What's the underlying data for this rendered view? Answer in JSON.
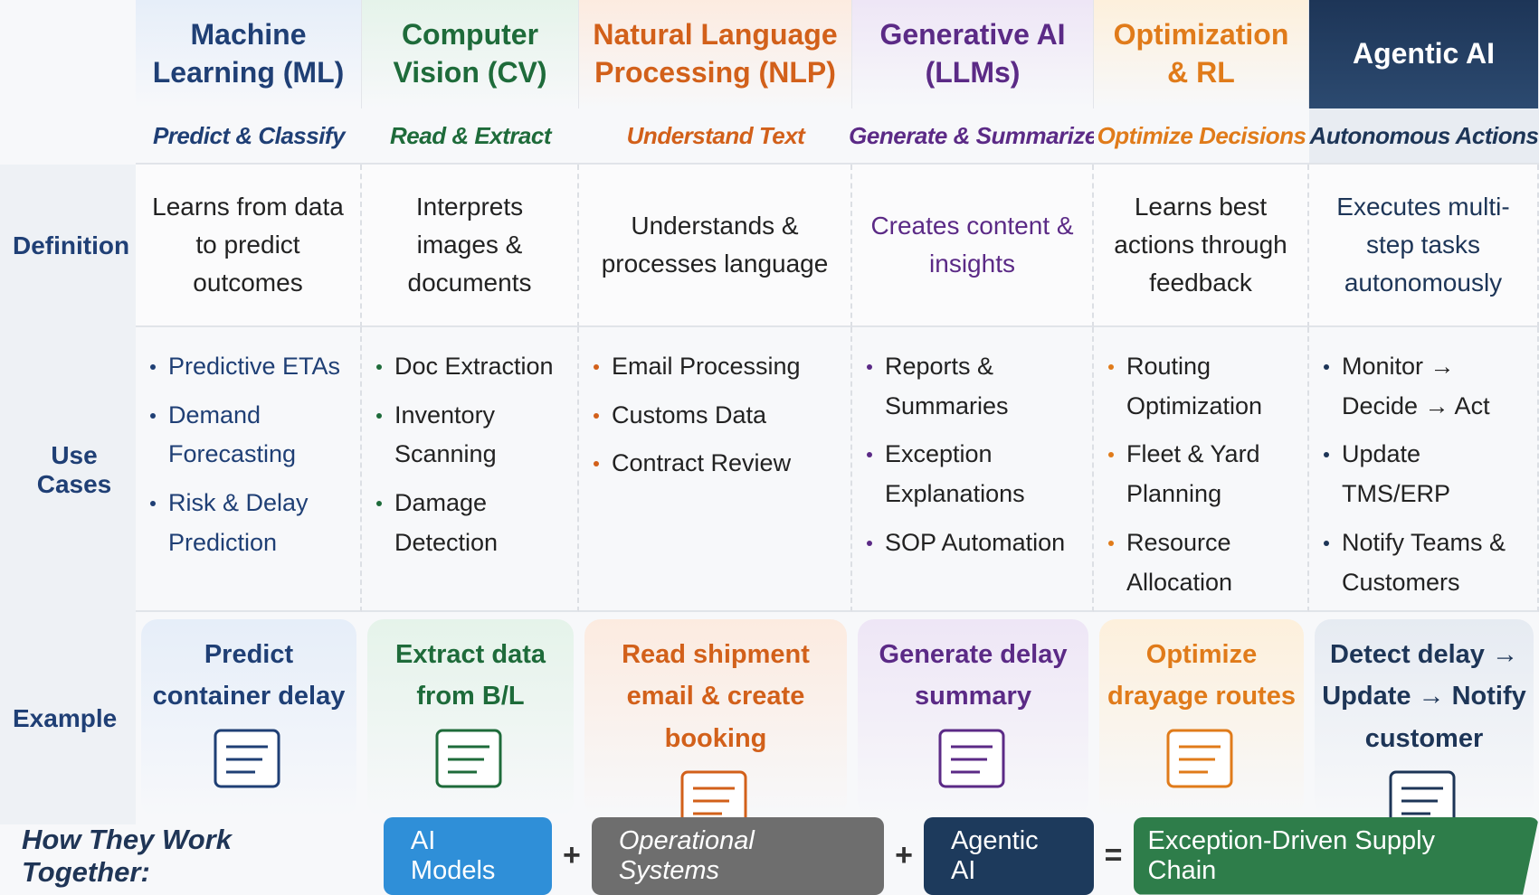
{
  "row_labels": [
    "Definition",
    "Use Cases",
    "Example"
  ],
  "columns": [
    {
      "title": "Machine Learning (ML)",
      "subtitle": "Predict & Classify",
      "color": "#1f3f75",
      "tint": "#e6eef9",
      "definition": "Learns from data to predict outcomes",
      "use_cases": [
        "Predictive ETAs",
        "Demand Forecasting",
        "Risk & Delay Prediction"
      ],
      "example": "Predict container delay"
    },
    {
      "title": "Computer Vision (CV)",
      "subtitle": "Read & Extract",
      "color": "#1e6b3a",
      "tint": "#e5f3ea",
      "definition": "Interprets images & documents",
      "use_cases": [
        "Doc Extraction",
        "Inventory Scanning",
        "Damage Detection"
      ],
      "example": "Extract data from B/L"
    },
    {
      "title": "Natural Language Processing (NLP)",
      "subtitle": "Understand Text",
      "color": "#d2601a",
      "tint": "#fcebe0",
      "definition": "Understands & processes language",
      "use_cases": [
        "Email Processing",
        "Customs Data",
        "Contract Review"
      ],
      "example": "Read shipment email & create booking"
    },
    {
      "title": "Generative AI (LLMs)",
      "subtitle": "Generate & Summarize",
      "color": "#5b2a86",
      "tint": "#eee6f6",
      "definition": "Creates content & insights",
      "use_cases": [
        "Reports & Summaries",
        "Exception Explanations",
        "SOP Automation"
      ],
      "example": "Generate delay summary"
    },
    {
      "title": "Optimization & RL",
      "subtitle": "Optimize Decisions",
      "color": "#e07b1a",
      "tint": "#fdf0dc",
      "definition": "Learns best actions through feedback",
      "use_cases": [
        "Routing Optimization",
        "Fleet & Yard Planning",
        "Resource Allocation"
      ],
      "example": "Optimize drayage routes"
    },
    {
      "title": "Agentic AI",
      "subtitle": "Autonomous Actions",
      "color": "#1d3557",
      "tint": "#e6ebf2",
      "definition": "Executes multi-step tasks autonomously",
      "use_cases": [
        "Monitor → Decide → Act",
        "Update TMS/ERP",
        "Notify Teams & Customers"
      ],
      "example": "Detect delay → Update → Notify customer"
    }
  ],
  "footer": {
    "label": "How They Work Together:",
    "items": [
      {
        "text": "AI Models",
        "color": "#2f8fd8"
      },
      {
        "text": "Operational Systems",
        "color": "#6e6e6e"
      },
      {
        "text": "Agentic AI",
        "color": "#1d3a5c"
      }
    ],
    "operators": [
      "+",
      "+",
      "="
    ],
    "result": {
      "text": "Exception-Driven Supply Chain",
      "color": "#2e7d4a"
    }
  }
}
